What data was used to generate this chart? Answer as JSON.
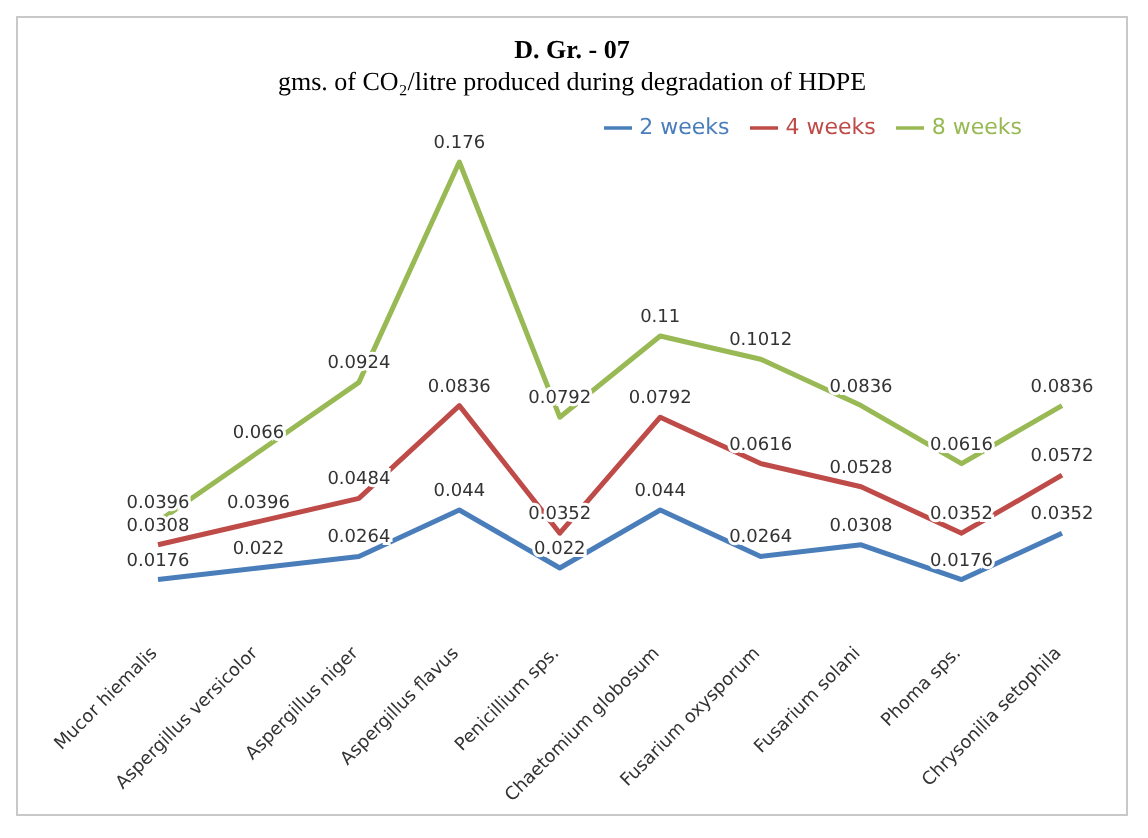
{
  "chart_data": {
    "type": "line",
    "title": "D. Gr. - 07",
    "subtitle": "gms. of CO₂/litre  produced during  degradation  of HDPE",
    "categories": [
      "Mucor hiemalis",
      "Aspergillus versicolor",
      "Aspergillus niger",
      "Aspergillus flavus",
      "Penicillium sps.",
      "Chaetomium globosum",
      "Fusarium oxysporum",
      "Fusarium solani",
      "Phoma sps.",
      "Chrysonilia setophila"
    ],
    "series": [
      {
        "name": "2 weeks",
        "color": "#4a7ebb",
        "values": [
          0.0176,
          0.022,
          0.0264,
          0.044,
          0.022,
          0.044,
          0.0264,
          0.0308,
          0.0176,
          0.0352
        ]
      },
      {
        "name": "4 weeks",
        "color": "#be4b48",
        "values": [
          0.0308,
          0.0396,
          0.0484,
          0.0836,
          0.0352,
          0.0792,
          0.0616,
          0.0528,
          0.0352,
          0.0572
        ]
      },
      {
        "name": "8 weeks",
        "color": "#98b954",
        "values": [
          0.0396,
          0.066,
          0.0924,
          0.176,
          0.0792,
          0.11,
          0.1012,
          0.0836,
          0.0616,
          0.0836
        ]
      }
    ],
    "data_labels": true,
    "legend": "top right",
    "grid": false,
    "marker": "none",
    "line_style": "solid"
  }
}
